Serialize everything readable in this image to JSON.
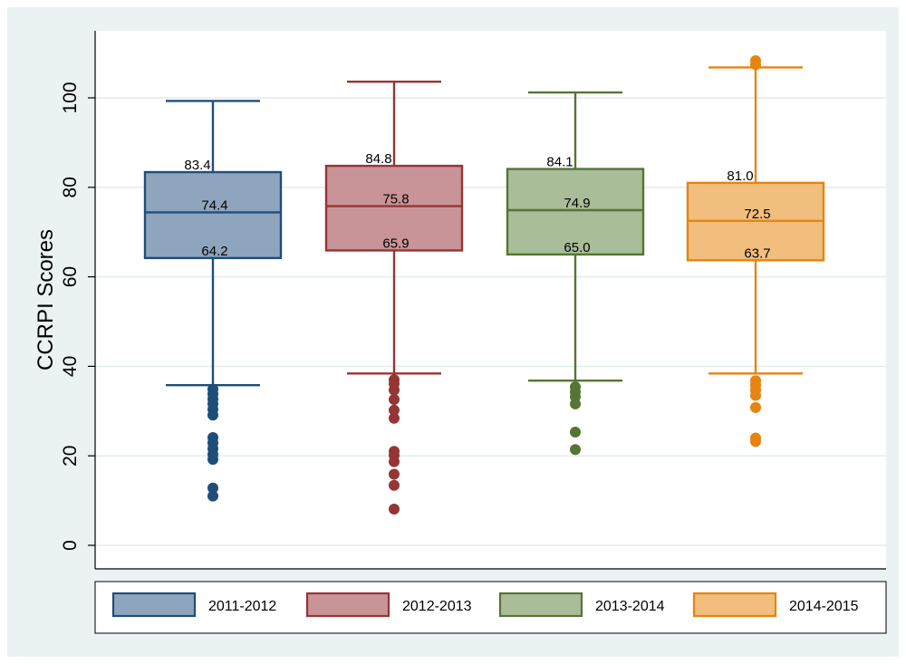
{
  "chart_data": {
    "type": "box",
    "title": "",
    "xlabel": "",
    "ylabel": "CCRPI Scores",
    "ylim": [
      0,
      112
    ],
    "yticks": [
      0,
      20,
      40,
      60,
      80,
      100
    ],
    "ytick_labels": [
      "0",
      "20",
      "40",
      "60",
      "80",
      "100"
    ],
    "grid": true,
    "legend_position": "bottom",
    "series": [
      {
        "name": "2011-2012",
        "color": "#1f4e79",
        "fill": "#8fa5bd",
        "q1": 64.2,
        "median": 74.4,
        "q3": 83.4,
        "whisker_low": 35.8,
        "whisker_high": 99.3,
        "q1_label": "64.2",
        "median_label": "74.4",
        "q3_label": "83.4",
        "outliers": [
          34.9,
          33.8,
          32.7,
          31.6,
          30.4,
          29.1,
          24.1,
          22.9,
          21.6,
          20.3,
          19.2,
          12.8,
          11.0
        ]
      },
      {
        "name": "2012-2013",
        "color": "#953535",
        "fill": "#c99497",
        "q1": 65.9,
        "median": 75.8,
        "q3": 84.8,
        "whisker_low": 38.4,
        "whisker_high": 103.6,
        "q1_label": "65.9",
        "median_label": "75.8",
        "q3_label": "84.8",
        "outliers": [
          37.0,
          36.1,
          34.7,
          32.6,
          30.2,
          28.4,
          21.0,
          20.1,
          18.7,
          15.9,
          13.4,
          8.1
        ]
      },
      {
        "name": "2013-2014",
        "color": "#567434",
        "fill": "#a9bd98",
        "q1": 65.0,
        "median": 74.9,
        "q3": 84.1,
        "whisker_low": 36.8,
        "whisker_high": 101.2,
        "q1_label": "65.0",
        "median_label": "74.9",
        "q3_label": "84.1",
        "outliers": [
          35.4,
          34.3,
          33.2,
          31.6,
          25.3,
          21.4
        ]
      },
      {
        "name": "2014-2015",
        "color": "#e6840f",
        "fill": "#f1be7e",
        "q1": 63.7,
        "median": 72.5,
        "q3": 81.0,
        "whisker_low": 38.4,
        "whisker_high": 106.8,
        "q1_label": "63.7",
        "median_label": "72.5",
        "q3_label": "81.0",
        "outliers": [
          108.3,
          107.4,
          36.8,
          35.8,
          34.7,
          33.5,
          30.8,
          24.0,
          23.2
        ]
      }
    ]
  }
}
